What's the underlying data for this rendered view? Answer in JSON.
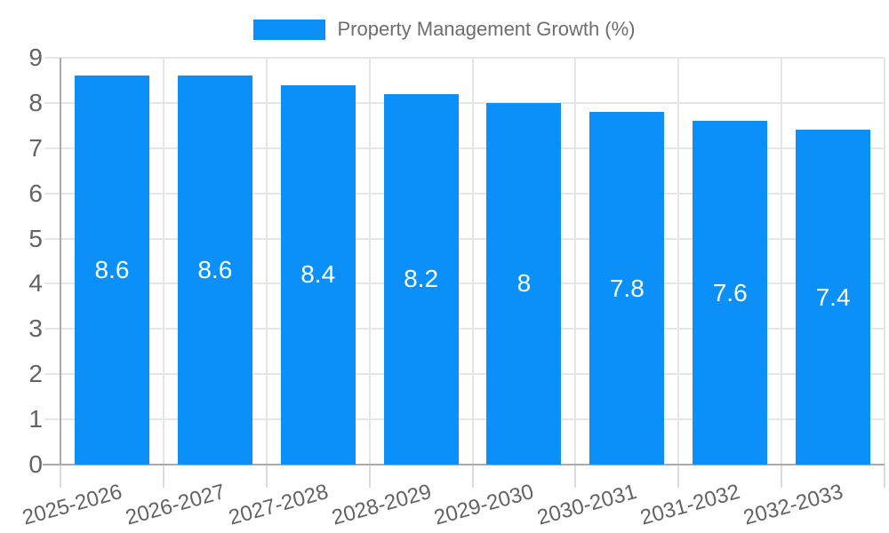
{
  "chart_data": {
    "type": "bar",
    "title": "",
    "legend": "Property Management Growth (%)",
    "legend_position": "top-center",
    "categories": [
      "2025-2026",
      "2026-2027",
      "2027-2028",
      "2028-2029",
      "2029-2030",
      "2030-2031",
      "2031-2032",
      "2032-2033"
    ],
    "series": [
      {
        "name": "Property Management Growth (%)",
        "values": [
          8.6,
          8.6,
          8.4,
          8.2,
          8,
          7.8,
          7.6,
          7.4
        ]
      }
    ],
    "value_labels": [
      "8.6",
      "8.6",
      "8.4",
      "8.2",
      "8",
      "7.8",
      "7.6",
      "7.4"
    ],
    "xlabel": "",
    "ylabel": "",
    "ylim": [
      0,
      9
    ],
    "yticks": [
      0,
      1,
      2,
      3,
      4,
      5,
      6,
      7,
      8,
      9
    ],
    "grid": true,
    "x_labels_rotated": true,
    "colors": {
      "bar": "#0a90f8",
      "value_label": "#ffffff",
      "axis_text": "#636363",
      "legend_text": "#6e6e6e",
      "gridline": "#e6e6e6",
      "axis_line": "#ababab",
      "background": "#ffffff"
    }
  }
}
